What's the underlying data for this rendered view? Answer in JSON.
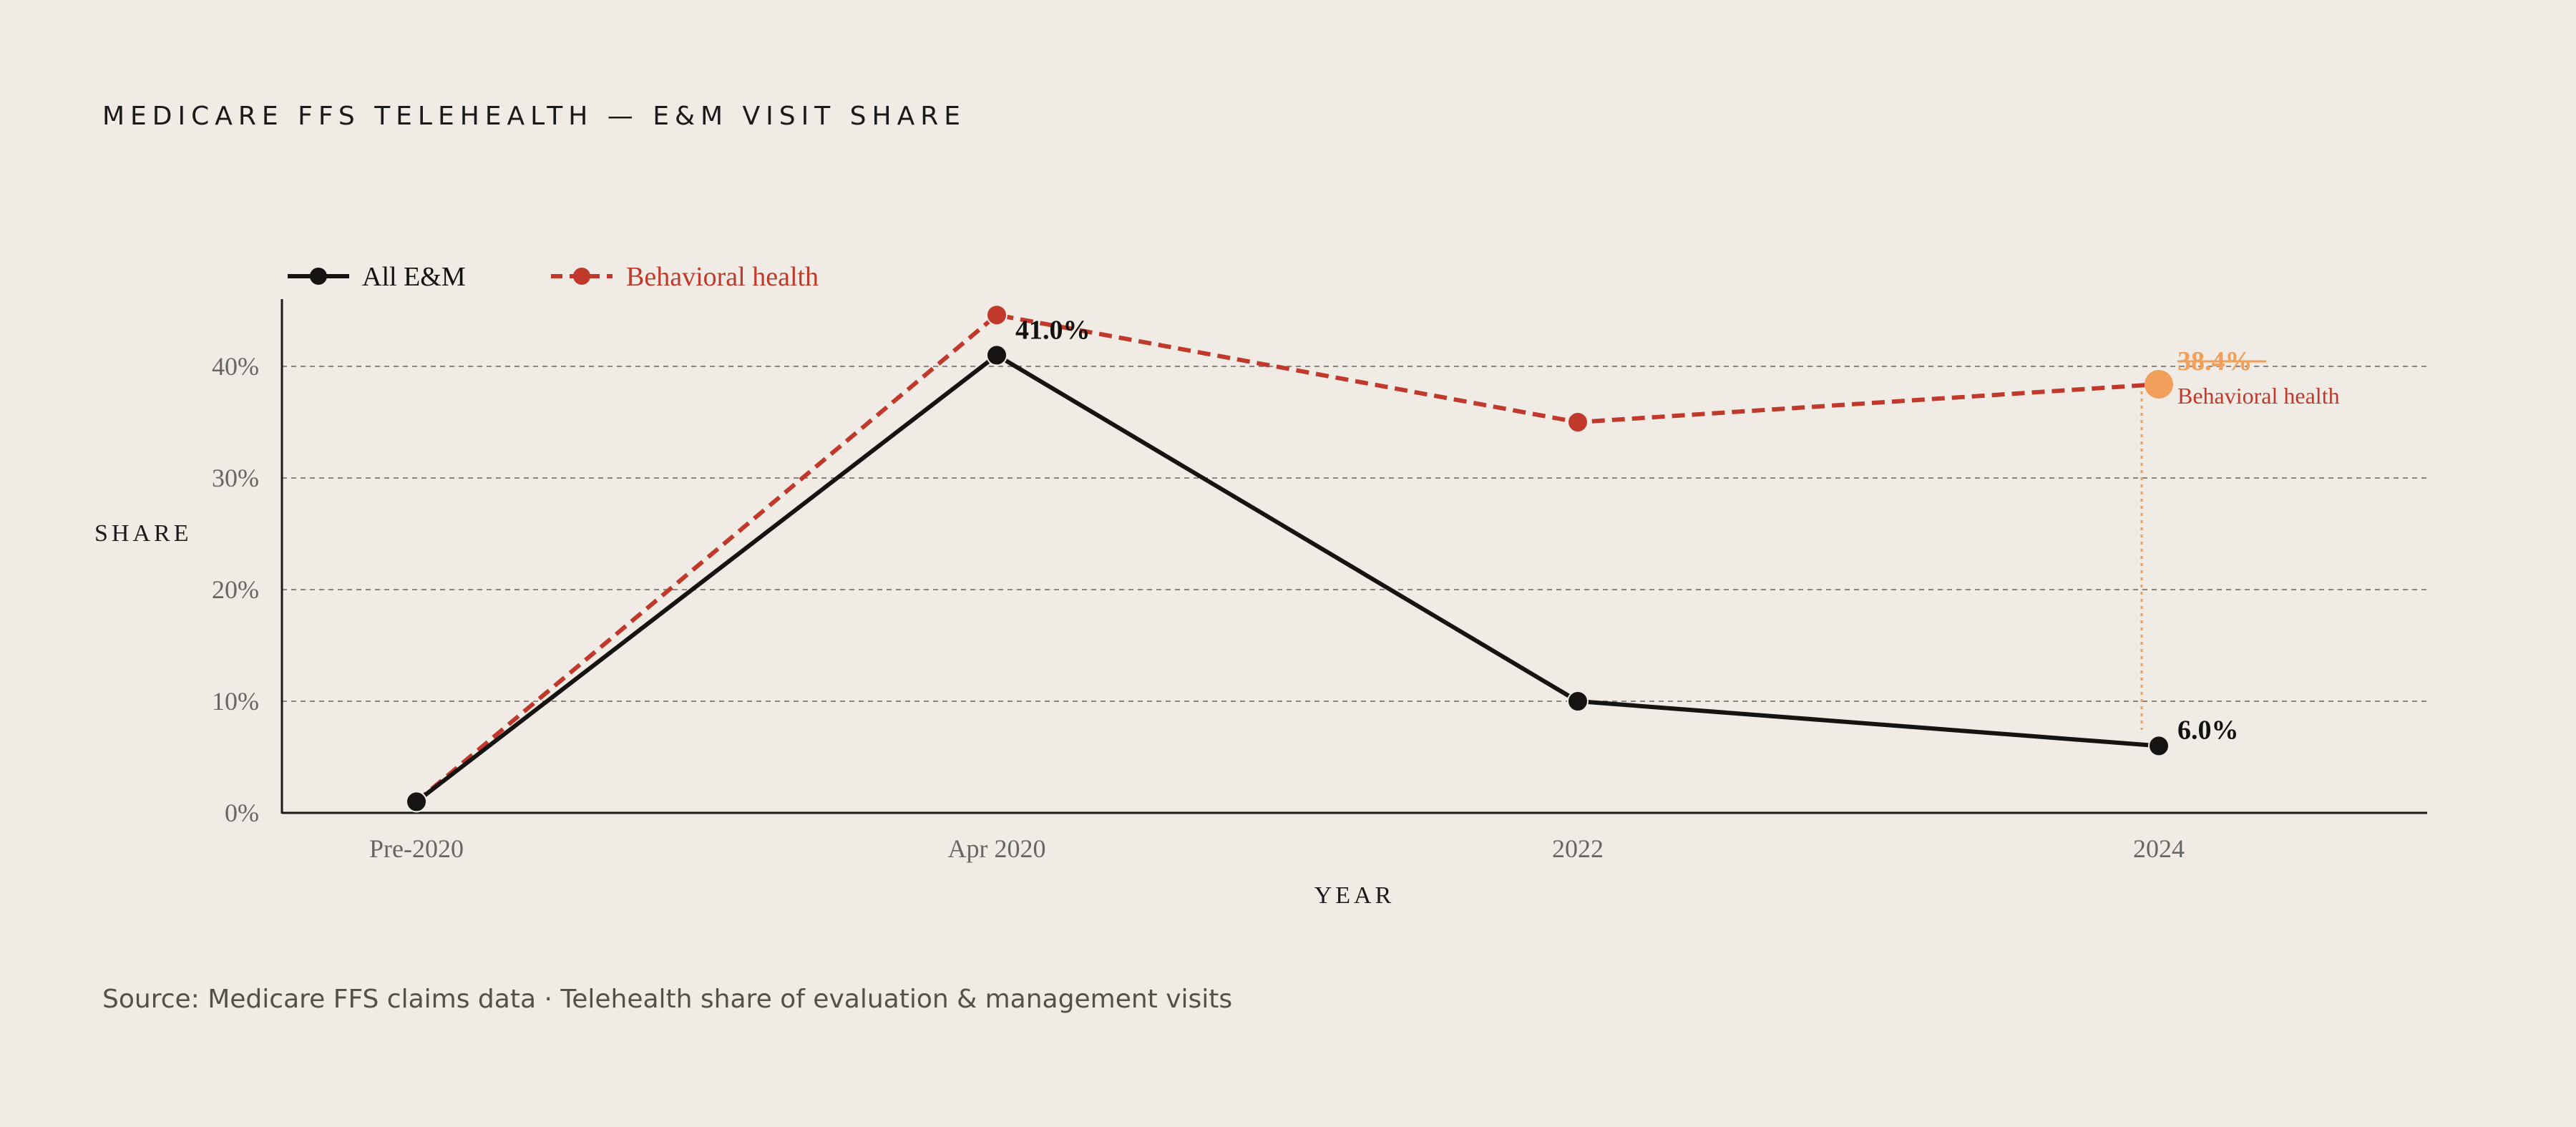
{
  "title": "MEDICARE FFS TELEHEALTH — E&M VISIT SHARE",
  "source": "Source: Medicare FFS claims data · Telehealth share of evaluation & management visits",
  "colors": {
    "background": "#f0ebe5",
    "all_em": "#161412",
    "behavioral": "#c0392b",
    "highlight": "#f0a05a",
    "grid": "#8a8580",
    "tick": "#666666"
  },
  "chart_data": {
    "type": "line",
    "categories": [
      "Pre-2020",
      "Apr 2020",
      "2022",
      "2024"
    ],
    "series": [
      {
        "name": "All E&M",
        "values": [
          1.0,
          41.0,
          10.0,
          6.0
        ],
        "style": "solid"
      },
      {
        "name": "Behavioral health",
        "values": [
          1.0,
          44.6,
          35.0,
          38.4
        ],
        "style": "dashed"
      }
    ],
    "xlabel": "YEAR",
    "ylabel": "SHARE",
    "ylim": [
      0,
      50
    ],
    "yticks": [
      0,
      10,
      20,
      30,
      40
    ],
    "ytick_labels": [
      "0%",
      "10%",
      "20%",
      "30%",
      "40%"
    ],
    "grid": true,
    "legend_position": "top-left",
    "annotations": [
      {
        "series": 0,
        "index": 1,
        "text": "41.0%"
      },
      {
        "series": 0,
        "index": 3,
        "text": "6.0%"
      },
      {
        "series": 1,
        "index": 3,
        "text": "38.4%",
        "sublabel": "Behavioral health",
        "highlight": true
      }
    ]
  }
}
